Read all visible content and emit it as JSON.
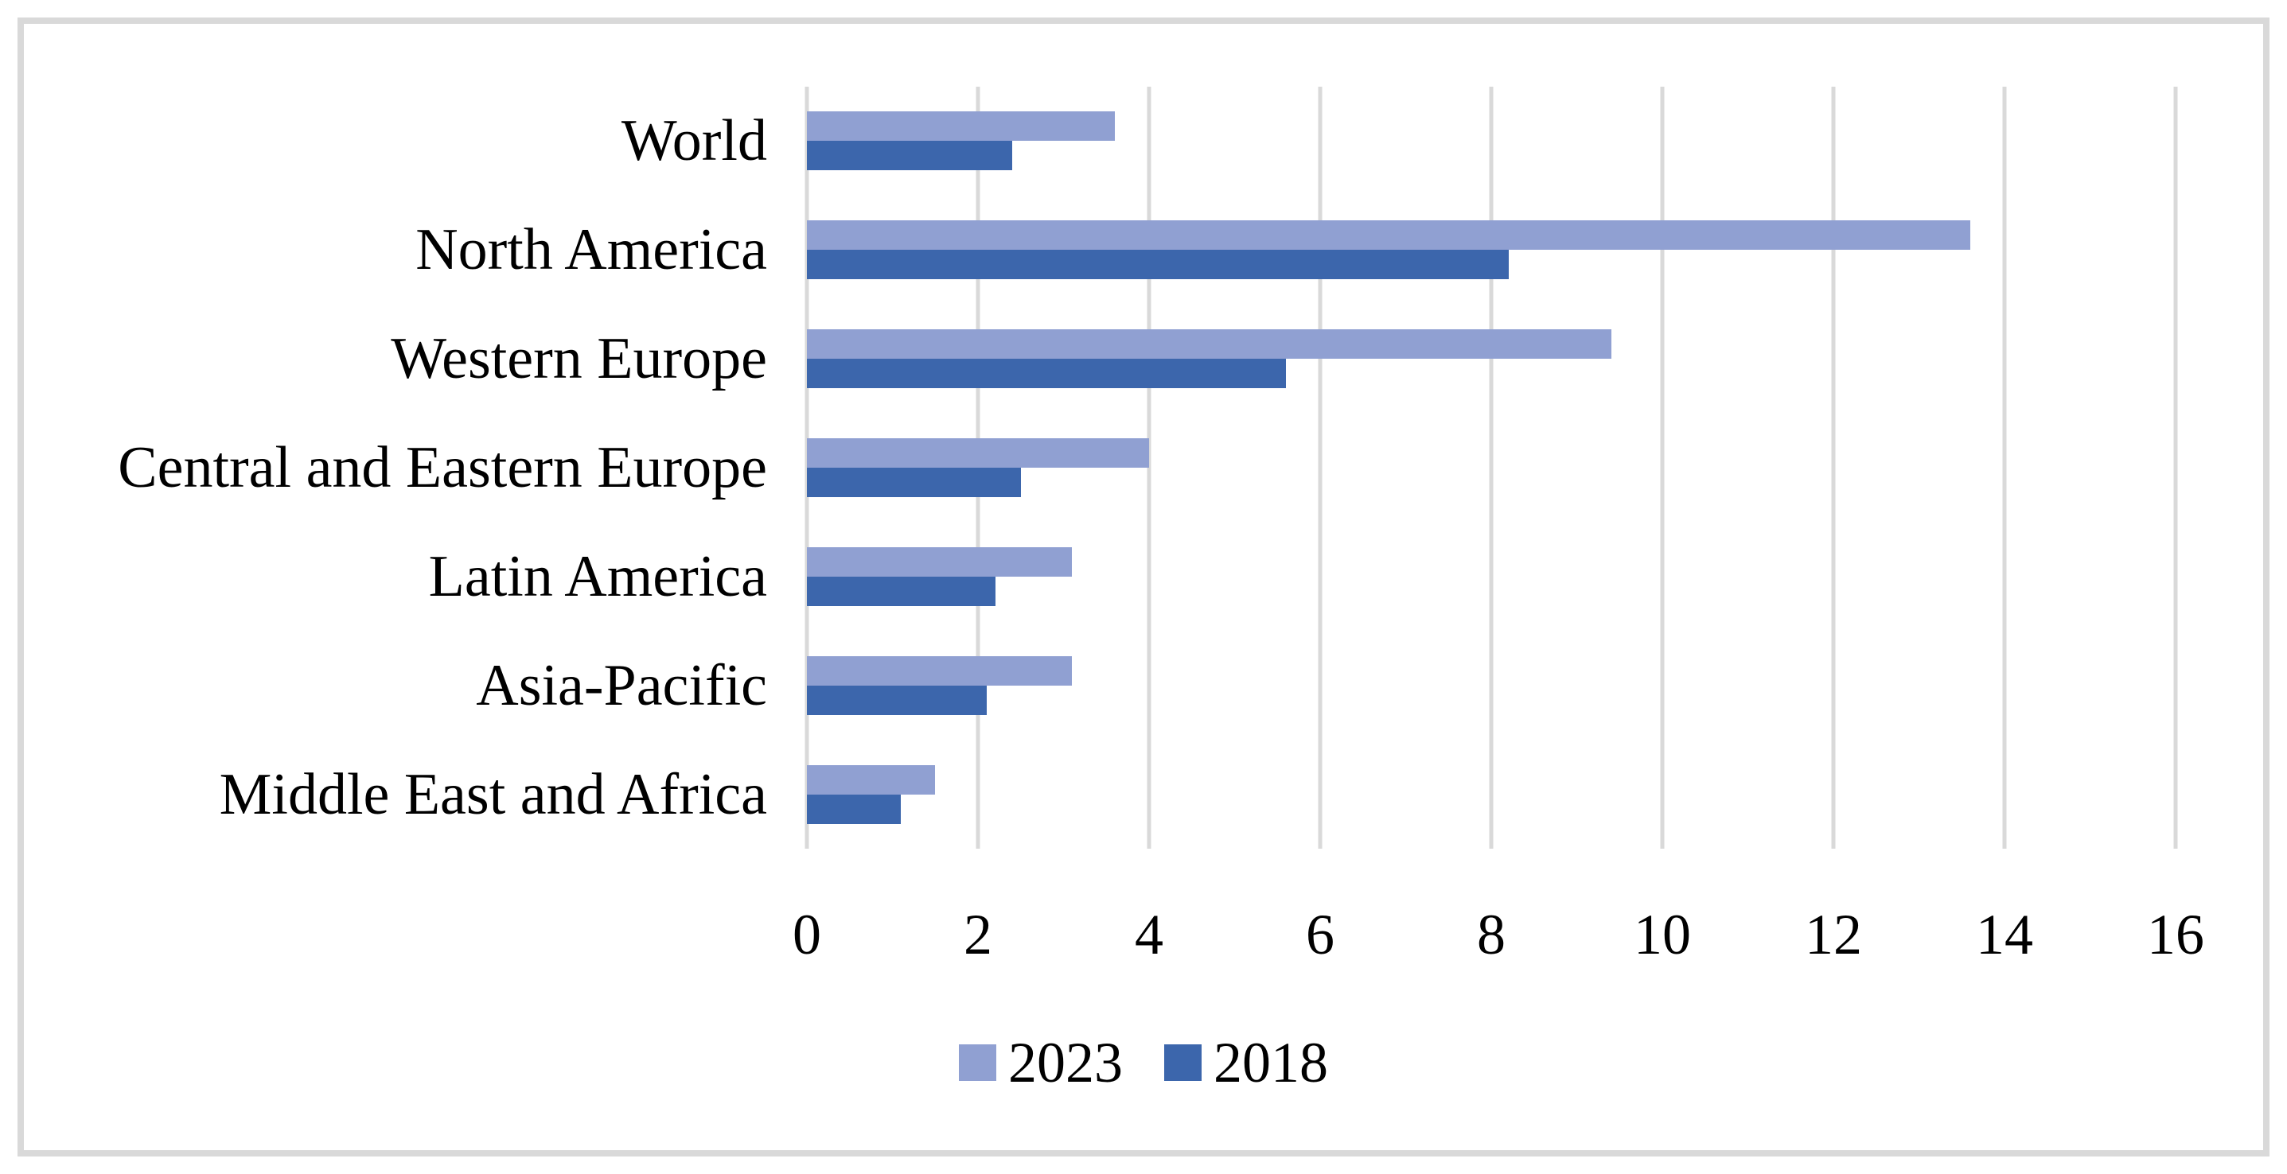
{
  "chart_data": {
    "type": "bar",
    "orientation": "horizontal",
    "categories": [
      "World",
      "North America",
      "Western Europe",
      "Central and Eastern Europe",
      "Latin America",
      "Asia-Pacific",
      "Middle East and Africa"
    ],
    "series": [
      {
        "name": "2023",
        "color": "#90A0D2",
        "values": [
          3.6,
          13.6,
          9.4,
          4.0,
          3.1,
          3.1,
          1.5
        ]
      },
      {
        "name": "2018",
        "color": "#3C66AC",
        "values": [
          2.4,
          8.2,
          5.6,
          2.5,
          2.2,
          2.1,
          1.1
        ]
      }
    ],
    "xlim": [
      0,
      16
    ],
    "xticks": [
      0,
      2,
      4,
      6,
      8,
      10,
      12,
      14,
      16
    ],
    "grid": "vertical",
    "gridline_color": "#D9D9D9",
    "frame_color": "#D9D9D9",
    "legend": {
      "position": "bottom",
      "entries": [
        "2023",
        "2018"
      ]
    }
  }
}
